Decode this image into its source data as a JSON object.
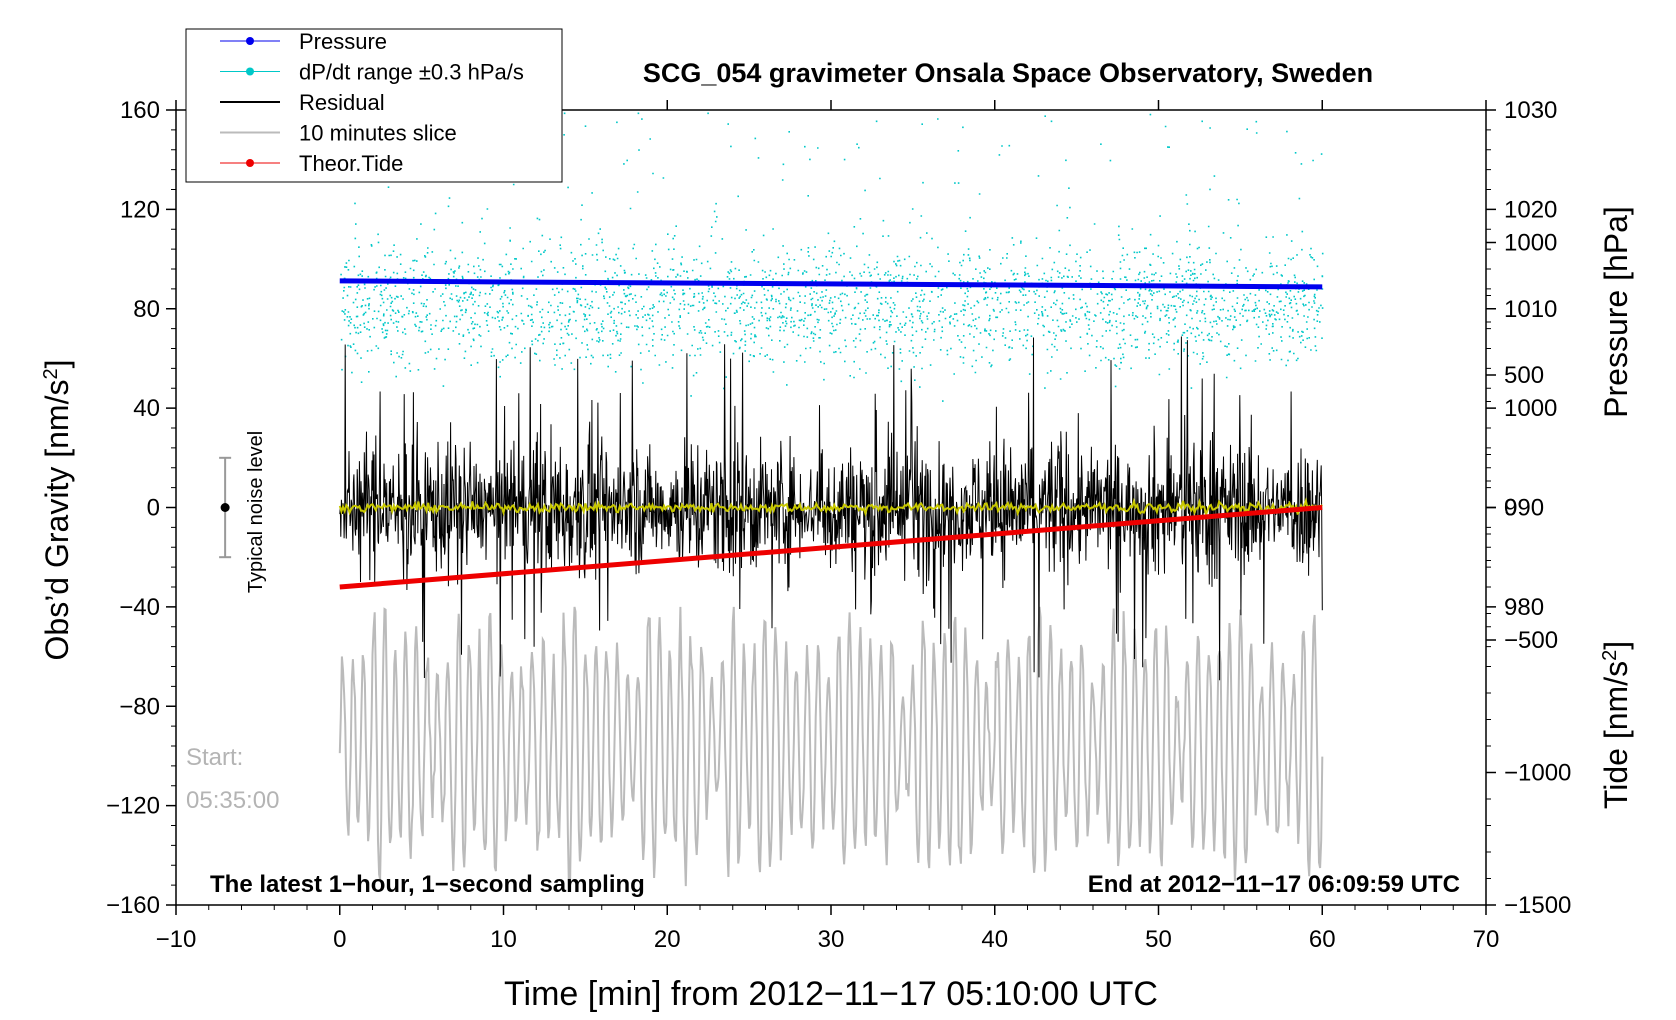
{
  "chart_data": {
    "type": "line",
    "title": "SCG_054 gravimeter Onsala Space Observatory, Sweden",
    "xlabel": "Time [min] from 2012−11−17 05:10:00 UTC",
    "ylabel_left": "Obs’d Gravity [nm/s",
    "ylabel_left_sup": "2",
    "ylabel_left_end": "]",
    "ylabel_right_pressure": "Pressure [hPa]",
    "ylabel_right_tide": "Tide [nm/s",
    "ylabel_right_tide_sup": "2",
    "ylabel_right_tide_end": "]",
    "xlim": [
      -10,
      70
    ],
    "ylim_left": [
      -160,
      160
    ],
    "ylim_pressure": [
      950,
      1030
    ],
    "ylim_tide": [
      -1500,
      1500
    ],
    "x_ticks": [
      "−10",
      "0",
      "10",
      "20",
      "30",
      "40",
      "50",
      "60",
      "70"
    ],
    "y_ticks_left": [
      "−160",
      "−120",
      "−80",
      "−40",
      "0",
      "40",
      "80",
      "120",
      "160"
    ],
    "y_ticks_pressure": [
      "980",
      "990",
      "1000",
      "1010",
      "1020",
      "1030"
    ],
    "y_ticks_tide": [
      "−1500",
      "−1000",
      "−500",
      "0",
      "500",
      "1000"
    ],
    "series": [
      {
        "name": "Pressure",
        "color": "#0000ee",
        "axis": "pressure",
        "x": [
          0,
          60
        ],
        "values": [
          1012.8,
          1012.2
        ]
      },
      {
        "name": "dP/dt range ±0.3 hPa/s",
        "color": "#00c8c8",
        "axis": "left",
        "note": "scatter cloud mostly between 45 and 125 nm/s2, peaking near 80"
      },
      {
        "name": "Residual",
        "color": "#000000",
        "axis": "left",
        "note": "noisy trace around 0, amplitude about ±40, spikes to ±70"
      },
      {
        "name": "10 minutes slice",
        "color": "#bbbbbb",
        "axis": "left",
        "note": "oscillating trace centred near −95, amplitude about ±45"
      },
      {
        "name": "Theor.Tide",
        "color": "#ee0000",
        "axis": "tide",
        "x": [
          0,
          60
        ],
        "values": [
          -300,
          0
        ]
      }
    ],
    "smoothed_residual_color": "#c8c800",
    "noise_level": {
      "label": "Typical noise level",
      "x": -7,
      "center": 0,
      "half_range": 20
    },
    "annotations": {
      "start_label": "Start:",
      "start_time": "05:35:00",
      "bottom_left": "The latest 1−hour, 1−second sampling",
      "bottom_right": "End at 2012−11−17 06:09:59 UTC"
    }
  },
  "legend": [
    {
      "label": "Pressure",
      "color": "#0000ee",
      "marker": true
    },
    {
      "label": "dP/dt range ±0.3 hPa/s",
      "color": "#00c8c8",
      "marker": true
    },
    {
      "label": "Residual",
      "color": "#000000",
      "marker": false
    },
    {
      "label": "10 minutes slice",
      "color": "#bbbbbb",
      "marker": false
    },
    {
      "label": "Theor.Tide",
      "color": "#ee0000",
      "marker": true
    }
  ]
}
